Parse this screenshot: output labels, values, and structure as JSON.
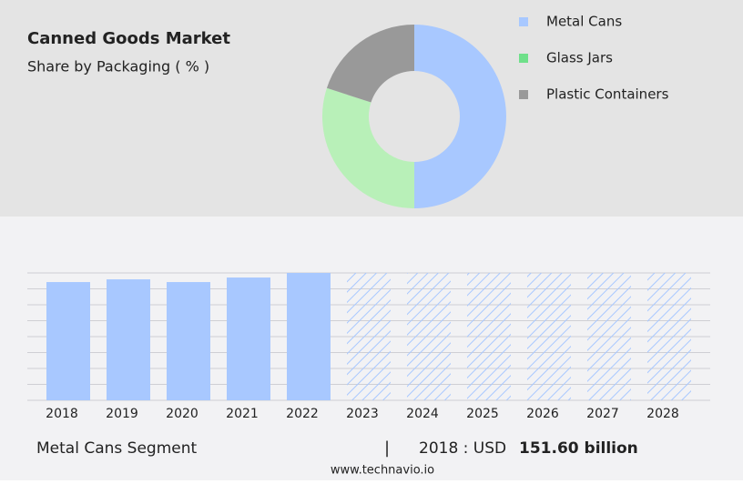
{
  "chart_data": [
    {
      "type": "pie",
      "title": "Canned Goods Market",
      "subtitle": "Share by Packaging ( % )",
      "categories": [
        "Metal Cans",
        "Glass Jars",
        "Plastic Containers"
      ],
      "values": [
        50,
        30,
        20
      ],
      "colors": [
        "#a8c8ff",
        "#b8f0b8",
        "#999999"
      ],
      "legend_colors": [
        "#a8c8ff",
        "#6fe08a",
        "#999999"
      ]
    },
    {
      "type": "bar",
      "categories": [
        "2018",
        "2019",
        "2020",
        "2021",
        "2022",
        "2023",
        "2024",
        "2025",
        "2026",
        "2027",
        "2028"
      ],
      "values": [
        151.6,
        155.1,
        151.6,
        157.4,
        163.3,
        null,
        null,
        null,
        null,
        null,
        null
      ],
      "color": "#a8c8ff",
      "ylim": [
        0,
        163.3
      ]
    }
  ],
  "footer": {
    "segment": "Metal Cans Segment",
    "separator": "|",
    "year_label": "2018 : USD",
    "value": "151.60 billion",
    "source": "www.technavio.io"
  }
}
